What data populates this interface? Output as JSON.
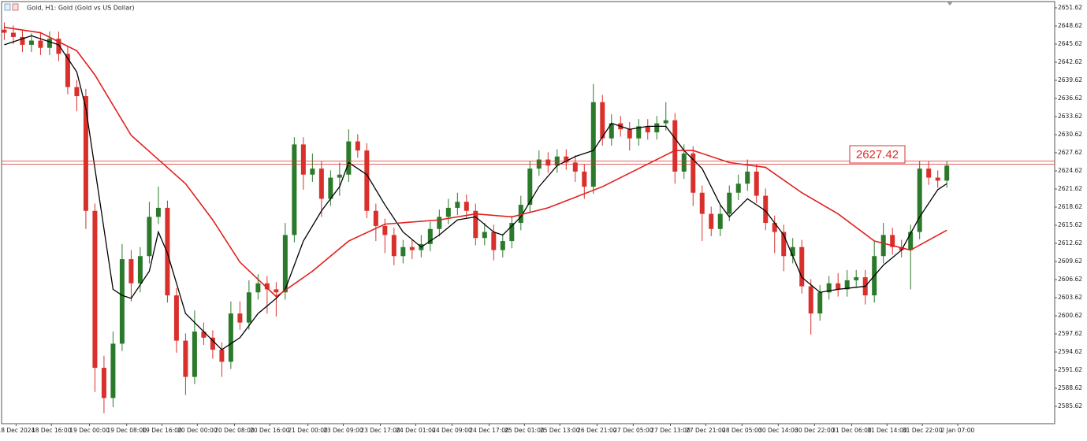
{
  "chart_data": {
    "type": "candlestick",
    "title": "Gold, H1: Gold (Gold vs US Dollar)",
    "open": [
      2648.0,
      2647.5,
      2646.8,
      2645.5,
      2646.2,
      2645.0,
      2646.5,
      2644.0,
      2638.5,
      2637.0,
      2618.0,
      2592.0,
      2587.0,
      2596.0,
      2610.0,
      2606.0,
      2610.5,
      2617.0,
      2618.5,
      2604.0,
      2596.5,
      2590.5,
      2598.0,
      2597.0,
      2595.0,
      2593.0,
      2601.0,
      2599.5,
      2604.5,
      2606.0,
      2605.0,
      2604.5,
      2614.0,
      2629.0,
      2624.0,
      2625.0,
      2620.0,
      2623.5,
      2624.0,
      2629.5,
      2628.0,
      2618.0,
      2615.5,
      2614.0,
      2610.5,
      2612.0,
      2611.5,
      2612.5,
      2615.0,
      2617.0,
      2618.5,
      2619.5,
      2618.0,
      2613.5,
      2614.5,
      2611.5,
      2613.0,
      2616.0,
      2619.0,
      2625.0,
      2626.5,
      2625.5,
      2627.0,
      2626.0,
      2624.5,
      2622.0,
      2636.0,
      2630.0,
      2632.5,
      2631.5,
      2630.0,
      2632.0,
      2631.0,
      2632.5,
      2633.0,
      2624.5,
      2627.5,
      2621.0,
      2617.5,
      2615.0,
      2617.5,
      2621.0,
      2622.5,
      2624.5,
      2620.5,
      2616.0,
      2614.5,
      2610.5,
      2612.0,
      2605.5,
      2601.0,
      2604.5,
      2606.0,
      2605.0,
      2606.5,
      2607.0,
      2604.0,
      2610.5,
      2614.0,
      2612.0,
      2611.5,
      2614.5,
      2625.0,
      2623.5,
      2623.0
    ],
    "high": [
      2649.2,
      2648.7,
      2648.0,
      2647.4,
      2647.4,
      2647.7,
      2647.7,
      2645.2,
      2639.7,
      2638.2,
      2619.2,
      2594.0,
      2598.0,
      2612.5,
      2611.5,
      2612.0,
      2619.5,
      2622.0,
      2619.7,
      2605.2,
      2597.7,
      2601.5,
      2599.5,
      2598.2,
      2596.2,
      2603.0,
      2603.0,
      2606.5,
      2607.5,
      2607.2,
      2606.2,
      2616.0,
      2630.2,
      2630.2,
      2627.5,
      2626.2,
      2624.7,
      2626.0,
      2631.5,
      2630.7,
      2629.2,
      2619.2,
      2616.7,
      2615.2,
      2613.2,
      2613.2,
      2614.0,
      2616.2,
      2618.2,
      2620.0,
      2621.0,
      2620.7,
      2619.2,
      2616.0,
      2615.7,
      2614.2,
      2617.2,
      2620.5,
      2626.2,
      2628.0,
      2627.7,
      2628.2,
      2628.2,
      2627.2,
      2625.7,
      2639.0,
      2637.2,
      2634.0,
      2633.7,
      2632.7,
      2633.2,
      2633.2,
      2633.7,
      2636.0,
      2634.2,
      2629.0,
      2628.7,
      2622.2,
      2618.7,
      2619.0,
      2622.2,
      2624.0,
      2626.5,
      2625.7,
      2621.7,
      2617.2,
      2615.7,
      2613.5,
      2613.2,
      2606.7,
      2605.7,
      2607.2,
      2607.7,
      2608.2,
      2608.2,
      2608.2,
      2613.0,
      2616.0,
      2615.2,
      2613.2,
      2615.7,
      2626.2,
      2626.2,
      2624.7,
      2626.2
    ],
    "low": [
      2646.3,
      2645.6,
      2644.3,
      2644.3,
      2643.8,
      2643.8,
      2642.8,
      2637.3,
      2634.5,
      2615.0,
      2588.0,
      2584.5,
      2585.5,
      2594.8,
      2603.0,
      2604.5,
      2609.3,
      2615.8,
      2602.8,
      2594.5,
      2587.5,
      2589.3,
      2595.8,
      2593.5,
      2590.5,
      2591.8,
      2598.3,
      2598.3,
      2603.3,
      2601.0,
      2600.5,
      2603.3,
      2612.8,
      2621.5,
      2622.8,
      2617.0,
      2618.8,
      2620.5,
      2622.8,
      2626.8,
      2616.8,
      2613.0,
      2611.0,
      2609.0,
      2609.3,
      2610.0,
      2610.3,
      2611.3,
      2613.8,
      2615.8,
      2617.3,
      2616.8,
      2612.3,
      2612.3,
      2609.8,
      2610.3,
      2611.8,
      2614.8,
      2617.8,
      2623.8,
      2624.3,
      2624.3,
      2624.8,
      2622.8,
      2620.0,
      2620.8,
      2628.8,
      2628.8,
      2630.3,
      2628.0,
      2628.8,
      2629.8,
      2629.8,
      2631.3,
      2622.5,
      2623.3,
      2618.8,
      2613.0,
      2613.8,
      2613.8,
      2616.3,
      2619.8,
      2621.3,
      2619.3,
      2614.8,
      2611.0,
      2608.0,
      2609.3,
      2604.3,
      2597.5,
      2599.8,
      2603.3,
      2603.8,
      2603.8,
      2605.3,
      2602.5,
      2602.8,
      2609.3,
      2610.8,
      2610.3,
      2605.0,
      2613.3,
      2622.3,
      2621.8,
      2621.8
    ],
    "close": [
      2647.5,
      2646.8,
      2645.5,
      2646.2,
      2645.0,
      2646.5,
      2644.0,
      2638.5,
      2637.0,
      2618.0,
      2592.0,
      2587.0,
      2596.0,
      2610.0,
      2606.0,
      2610.5,
      2617.0,
      2618.5,
      2604.0,
      2596.5,
      2590.5,
      2598.0,
      2597.0,
      2595.0,
      2593.0,
      2601.0,
      2599.5,
      2604.5,
      2606.0,
      2605.0,
      2604.5,
      2614.0,
      2629.0,
      2624.0,
      2625.0,
      2620.0,
      2623.5,
      2624.0,
      2629.5,
      2628.0,
      2618.0,
      2615.5,
      2614.0,
      2610.5,
      2612.0,
      2611.5,
      2612.5,
      2615.0,
      2617.0,
      2618.5,
      2619.5,
      2618.0,
      2613.5,
      2614.5,
      2611.5,
      2613.0,
      2616.0,
      2619.0,
      2625.0,
      2626.5,
      2625.5,
      2627.0,
      2626.0,
      2624.5,
      2622.0,
      2636.0,
      2630.0,
      2632.5,
      2631.5,
      2630.0,
      2632.0,
      2631.0,
      2632.5,
      2633.0,
      2624.5,
      2627.5,
      2621.0,
      2617.5,
      2615.0,
      2617.5,
      2621.0,
      2622.5,
      2624.5,
      2620.5,
      2616.0,
      2614.5,
      2610.5,
      2612.0,
      2605.5,
      2601.0,
      2604.5,
      2606.0,
      2605.0,
      2606.5,
      2607.0,
      2604.0,
      2610.5,
      2614.0,
      2612.0,
      2611.5,
      2614.5,
      2625.0,
      2623.5,
      2623.0,
      2625.5
    ],
    "up_color": "#2b7a2b",
    "down_color": "#d9302c",
    "series": [
      {
        "color": "#000000",
        "x": [
          0,
          3,
          6,
          8,
          9,
          10,
          12,
          13,
          14,
          16,
          17,
          18,
          20,
          22,
          24,
          26,
          28,
          30,
          31,
          33,
          35,
          37,
          38,
          40,
          42,
          44,
          46,
          48,
          50,
          52,
          54,
          55,
          57,
          59,
          61,
          63,
          65,
          67,
          69,
          71,
          73,
          75,
          77,
          79,
          80,
          82,
          84,
          86,
          88,
          90,
          92,
          95,
          97,
          99,
          101,
          103,
          104
        ],
        "values": [
          2645.5,
          2647.0,
          2645.5,
          2641.0,
          2635.0,
          2625.0,
          2605.0,
          2604.0,
          2603.5,
          2608.0,
          2614.5,
          2611.0,
          2601.0,
          2598.0,
          2595.0,
          2597.0,
          2601.0,
          2603.5,
          2605.0,
          2613.0,
          2618.0,
          2622.0,
          2626.0,
          2624.0,
          2619.0,
          2614.5,
          2612.0,
          2614.0,
          2616.5,
          2617.0,
          2614.5,
          2614.0,
          2617.0,
          2622.0,
          2625.5,
          2627.0,
          2628.0,
          2632.5,
          2631.5,
          2632.0,
          2632.0,
          2628.0,
          2625.0,
          2619.0,
          2617.0,
          2620.0,
          2618.0,
          2614.0,
          2607.0,
          2604.5,
          2605.0,
          2605.5,
          2609.0,
          2611.5,
          2617.0,
          2621.5,
          2622.5
        ]
      },
      {
        "color": "#e0201e",
        "x": [
          0,
          4,
          8,
          10,
          14,
          17,
          20,
          23,
          26,
          30,
          34,
          38,
          42,
          48,
          52,
          56,
          60,
          66,
          70,
          74,
          76,
          80,
          84,
          88,
          92,
          96,
          100,
          104
        ],
        "values": [
          2648.4,
          2647.5,
          2644.5,
          2640.5,
          2630.5,
          2626.5,
          2622.5,
          2616.5,
          2609.5,
          2603.8,
          2608.0,
          2613.0,
          2615.8,
          2616.5,
          2617.5,
          2617.0,
          2618.5,
          2622.0,
          2625.0,
          2628.0,
          2628.0,
          2626.0,
          2625.2,
          2621.0,
          2617.5,
          2613.0,
          2611.5,
          2614.8
        ]
      }
    ],
    "price_line": 2626.0,
    "price_line_color": "#d9302c",
    "annotation": "2627.42",
    "xlim": [
      -0.3,
      115.9
    ],
    "xticks": [
      {
        "value": 1.3,
        "label": "18 Dec 2024"
      },
      {
        "value": 5.2,
        "label": "18 Dec 16:00"
      },
      {
        "value": 9.4,
        "label": "19 Dec 00:00"
      },
      {
        "value": 13.5,
        "label": "19 Dec 08:00"
      },
      {
        "value": 17.4,
        "label": "19 Dec 16:00"
      },
      {
        "value": 21.3,
        "label": "20 Dec 00:00"
      },
      {
        "value": 25.4,
        "label": "20 Dec 08:00"
      },
      {
        "value": 29.3,
        "label": "20 Dec 16:00"
      },
      {
        "value": 33.5,
        "label": "21 Dec 00:00"
      },
      {
        "value": 37.4,
        "label": "23 Dec 09:00"
      },
      {
        "value": 41.5,
        "label": "23 Dec 17:00"
      },
      {
        "value": 45.4,
        "label": "24 Dec 01:00"
      },
      {
        "value": 49.4,
        "label": "24 Dec 09:00"
      },
      {
        "value": 53.5,
        "label": "24 Dec 17:00"
      },
      {
        "value": 57.4,
        "label": "25 Dec 01:00"
      },
      {
        "value": 61.3,
        "label": "25 Dec 13:00"
      },
      {
        "value": 65.4,
        "label": "26 Dec 21:00"
      },
      {
        "value": 69.4,
        "label": "27 Dec 05:00"
      },
      {
        "value": 73.5,
        "label": "27 Dec 13:00"
      },
      {
        "value": 77.4,
        "label": "27 Dec 21:00"
      },
      {
        "value": 81.4,
        "label": "28 Dec 05:00"
      },
      {
        "value": 85.4,
        "label": "30 Dec 14:00"
      },
      {
        "value": 89.4,
        "label": "30 Dec 22:00"
      },
      {
        "value": 93.5,
        "label": "31 Dec 06:00"
      },
      {
        "value": 97.4,
        "label": "31 Dec 14:00"
      },
      {
        "value": 101.3,
        "label": "31 Dec 22:00"
      },
      {
        "value": 105.2,
        "label": "2 Jan 07:00"
      }
    ],
    "ylim": [
      2582.75,
      2652.66
    ],
    "yticks": [
      2651.62,
      2648.62,
      2645.62,
      2642.62,
      2639.62,
      2636.62,
      2633.62,
      2630.62,
      2627.62,
      2624.62,
      2621.62,
      2618.62,
      2615.62,
      2612.62,
      2609.62,
      2606.62,
      2603.62,
      2600.62,
      2597.62,
      2594.62,
      2591.62,
      2588.62,
      2585.62
    ],
    "grid": false
  }
}
